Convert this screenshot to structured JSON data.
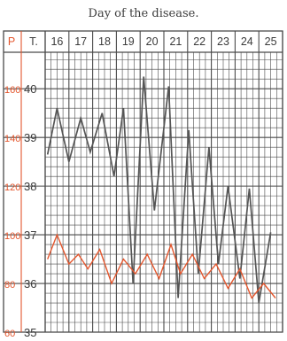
{
  "chart_data": {
    "type": "line",
    "title": "Day of the disease.",
    "pulse_header": "P",
    "temp_header": "T.",
    "days": [
      "16",
      "17",
      "18",
      "19",
      "20",
      "21",
      "22",
      "23",
      "24",
      "25"
    ],
    "pulse_ticks": [
      "160",
      "140",
      "120",
      "100",
      "80",
      "60"
    ],
    "temp_ticks": [
      "40",
      "39",
      "38",
      "37",
      "36",
      "35"
    ],
    "temp_range": [
      35,
      40.75
    ],
    "x_range": [
      16,
      26
    ],
    "colors": {
      "temperature": "#555555",
      "pulse": "#e4572e",
      "grid": "#4a4a4a",
      "pulse_axis": "#e4572e"
    },
    "series": [
      {
        "key": "temperature",
        "x": [
          16.1,
          16.5,
          17.0,
          17.5,
          17.9,
          18.4,
          18.9,
          19.3,
          19.7,
          20.15,
          20.6,
          21.2,
          21.6,
          22.05,
          22.45,
          22.9,
          23.3,
          23.7,
          24.2,
          24.6,
          25.0,
          25.5
        ],
        "y": [
          38.65,
          39.6,
          38.5,
          39.4,
          38.7,
          39.5,
          38.2,
          39.6,
          36.0,
          40.25,
          37.5,
          40.05,
          35.7,
          39.15,
          36.2,
          38.8,
          36.4,
          38.0,
          36.1,
          37.95,
          35.6,
          37.05
        ]
      },
      {
        "key": "pulse",
        "x": [
          16.1,
          16.5,
          17.0,
          17.4,
          17.8,
          18.3,
          18.8,
          19.3,
          19.8,
          20.3,
          20.8,
          21.3,
          21.7,
          22.2,
          22.7,
          23.2,
          23.7,
          24.2,
          24.7,
          25.2,
          25.7
        ],
        "y": [
          36.5,
          37.0,
          36.4,
          36.6,
          36.3,
          36.7,
          36.0,
          36.5,
          36.2,
          36.6,
          36.1,
          36.8,
          36.2,
          36.6,
          36.1,
          36.4,
          35.9,
          36.3,
          35.7,
          36.0,
          35.7
        ]
      }
    ]
  }
}
